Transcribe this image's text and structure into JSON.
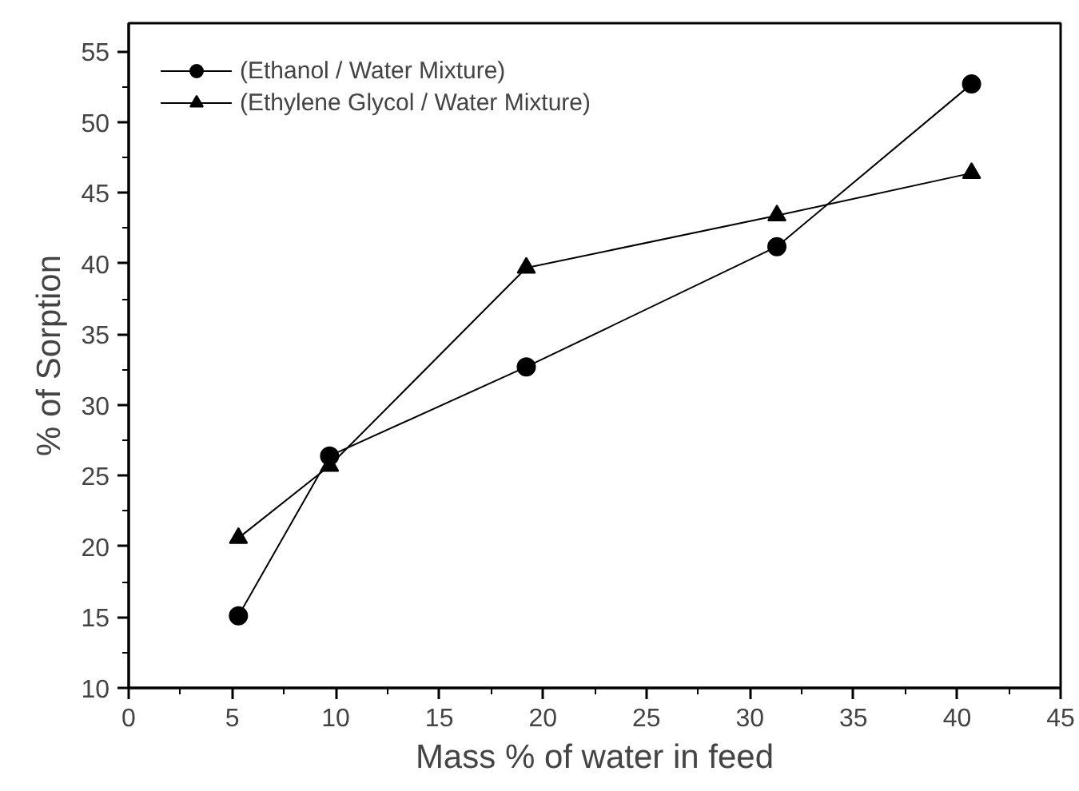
{
  "chart_data": {
    "type": "line",
    "xlabel": "Mass % of water in feed",
    "ylabel": "% of Sorption",
    "x": [
      5.3,
      9.7,
      19.2,
      31.3,
      40.7
    ],
    "series": [
      {
        "name": "(Ethanol / Water Mixture)",
        "color": "#000000",
        "marker": "circle",
        "values": [
          15.1,
          26.4,
          32.7,
          41.2,
          52.7
        ]
      },
      {
        "name": "(Ethylene Glycol / Water Mixture)",
        "color": "#000000",
        "marker": "triangle",
        "values": [
          20.6,
          25.7,
          39.7,
          43.4,
          46.4
        ]
      }
    ],
    "xlim": [
      0,
      45
    ],
    "ylim": [
      10,
      57
    ],
    "xticks": [
      0,
      5,
      10,
      15,
      20,
      25,
      30,
      35,
      40,
      45
    ],
    "yticks": [
      10,
      15,
      20,
      25,
      30,
      35,
      40,
      45,
      50,
      55
    ],
    "grid": false,
    "legend": "top left",
    "line_style": "solid"
  }
}
